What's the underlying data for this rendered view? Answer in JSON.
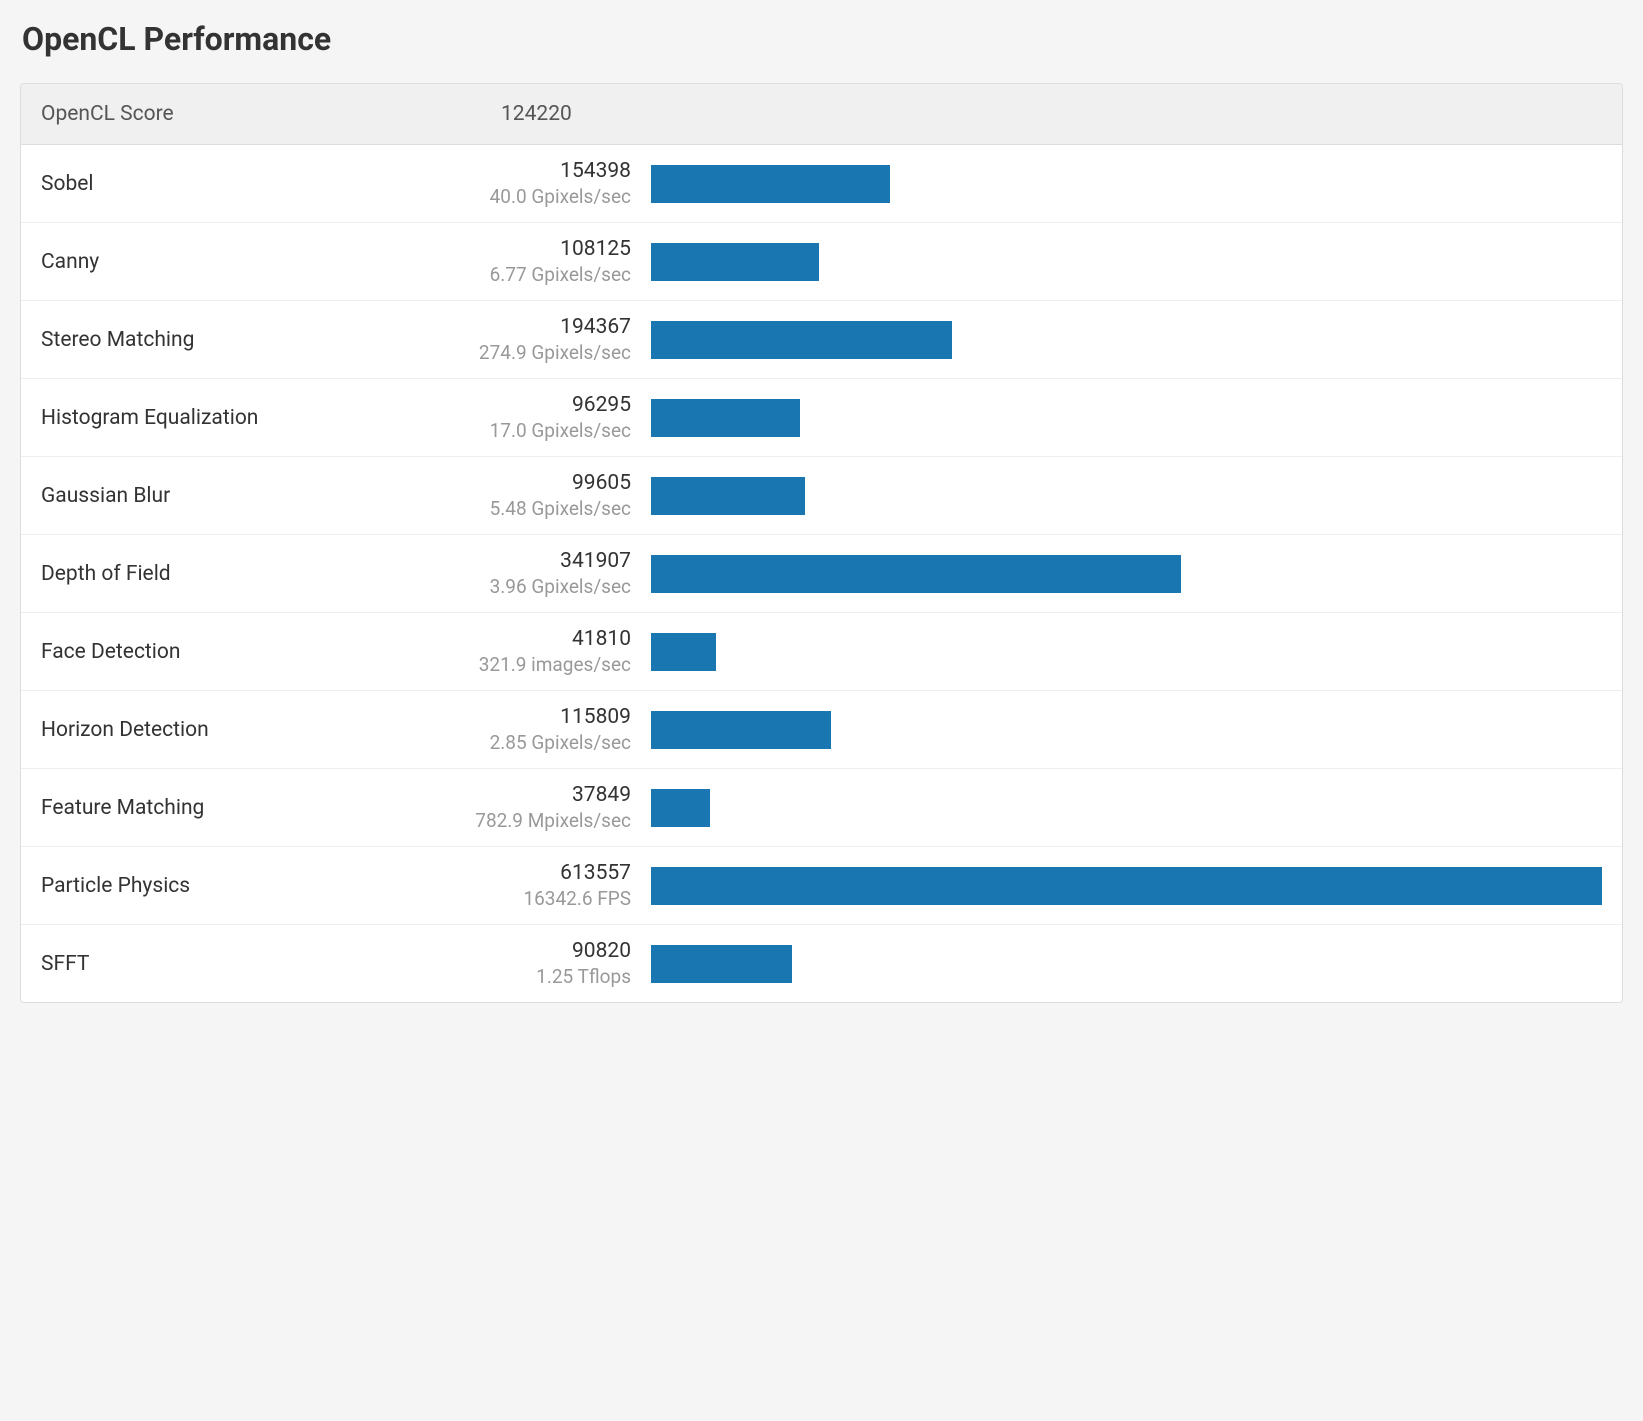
{
  "title": "OpenCL Performance",
  "header": {
    "label": "OpenCL Score",
    "score": "124220"
  },
  "bar_color": "#1976b0",
  "background_color": "#f5f5f5",
  "table_background": "#ffffff",
  "header_background": "#f0f0f0",
  "border_color": "#dddddd",
  "row_border_color": "#eeeeee",
  "text_color": "#333333",
  "subtitle_color": "#999999",
  "max_value": 613557,
  "rows": [
    {
      "name": "Sobel",
      "score": "154398",
      "subtitle": "40.0 Gpixels/sec",
      "value": 154398
    },
    {
      "name": "Canny",
      "score": "108125",
      "subtitle": "6.77 Gpixels/sec",
      "value": 108125
    },
    {
      "name": "Stereo Matching",
      "score": "194367",
      "subtitle": "274.9 Gpixels/sec",
      "value": 194367
    },
    {
      "name": "Histogram Equalization",
      "score": "96295",
      "subtitle": "17.0 Gpixels/sec",
      "value": 96295
    },
    {
      "name": "Gaussian Blur",
      "score": "99605",
      "subtitle": "5.48 Gpixels/sec",
      "value": 99605
    },
    {
      "name": "Depth of Field",
      "score": "341907",
      "subtitle": "3.96 Gpixels/sec",
      "value": 341907
    },
    {
      "name": "Face Detection",
      "score": "41810",
      "subtitle": "321.9 images/sec",
      "value": 41810
    },
    {
      "name": "Horizon Detection",
      "score": "115809",
      "subtitle": "2.85 Gpixels/sec",
      "value": 115809
    },
    {
      "name": "Feature Matching",
      "score": "37849",
      "subtitle": "782.9 Mpixels/sec",
      "value": 37849
    },
    {
      "name": "Particle Physics",
      "score": "613557",
      "subtitle": "16342.6 FPS",
      "value": 613557
    },
    {
      "name": "SFFT",
      "score": "90820",
      "subtitle": "1.25 Tflops",
      "value": 90820
    }
  ]
}
